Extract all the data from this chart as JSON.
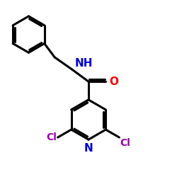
{
  "background_color": "#ffffff",
  "bond_color": "#000000",
  "nitrogen_color": "#0000cc",
  "oxygen_color": "#ff0000",
  "chlorine_color": "#9900aa",
  "bond_width": 2.2,
  "figsize": [
    2.5,
    2.5
  ],
  "dpi": 100,
  "NH_label": "NH",
  "O_label": "O",
  "N_label": "N",
  "Cl1_label": "Cl",
  "Cl2_label": "Cl"
}
